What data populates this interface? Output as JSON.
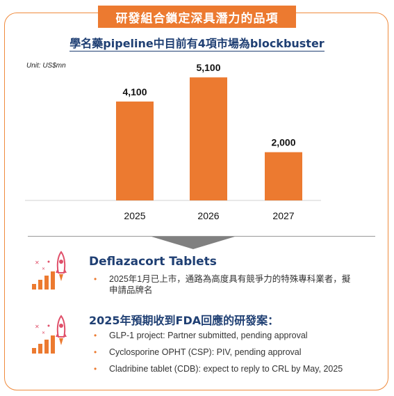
{
  "banner": {
    "title": "研發組合鎖定深具潛力的品項"
  },
  "chart_data": {
    "type": "bar",
    "title": "學名藥pipeline中目前有4項市場為blockbuster",
    "unit": "Unit: US$mn",
    "categories": [
      "2025",
      "2026",
      "2027"
    ],
    "values": [
      4100,
      5100,
      2000
    ],
    "value_labels": [
      "4,100",
      "5,100",
      "2,000"
    ],
    "ylim": [
      0,
      6000
    ],
    "grid": false,
    "bar_color": "#ec7a30"
  },
  "sections": [
    {
      "heading": "Deflazacort Tablets",
      "icon": "rocket-growth-icon",
      "bullets": [
        "2025年1月已上市，通路為高度具有競爭力的特殊專科業者，擬",
        "申請品牌名"
      ]
    },
    {
      "heading": "2025年預期收到FDA回應的研發案：",
      "icon": "rocket-growth-icon",
      "bullets": [
        "GLP-1 project: Partner submitted, pending approval",
        "Cyclosporine OPHT (CSP): PIV, pending approval",
        "Cladribine tablet (CDB): expect to reply to CRL by May, 2025"
      ]
    }
  ],
  "colors": {
    "accent": "#ec7a30",
    "heading": "#1f3f73",
    "arrow": "#808080"
  }
}
